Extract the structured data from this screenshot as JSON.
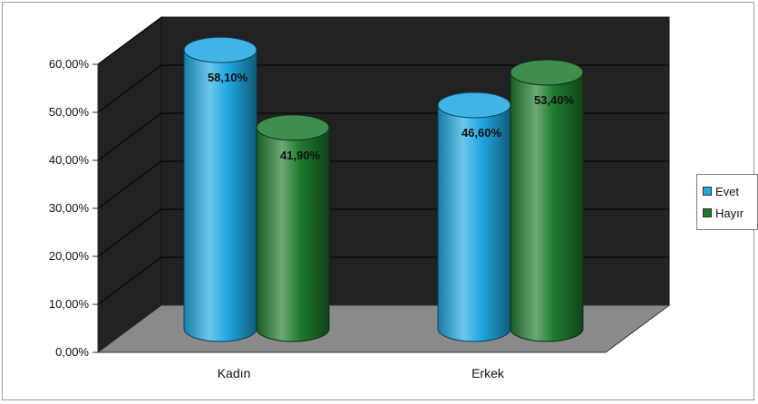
{
  "chart_data": {
    "type": "bar",
    "categories": [
      "Kadın",
      "Erkek"
    ],
    "series": [
      {
        "name": "Evet",
        "values": [
          58.1,
          46.6
        ],
        "labels": [
          "58,10%",
          "46,60%"
        ],
        "color": "#1fa7e0"
      },
      {
        "name": "Hayır",
        "values": [
          41.9,
          53.4
        ],
        "labels": [
          "41,90%",
          "53,40%"
        ],
        "color": "#1e7a2e"
      }
    ],
    "ylim": [
      0,
      60
    ],
    "yticks": [
      {
        "value": 0,
        "label": "0,00%"
      },
      {
        "value": 10,
        "label": "10,00%"
      },
      {
        "value": 20,
        "label": "20,00%"
      },
      {
        "value": 30,
        "label": "30,00%"
      },
      {
        "value": 40,
        "label": "40,00%"
      },
      {
        "value": 50,
        "label": "50,00%"
      },
      {
        "value": 60,
        "label": "60,00%"
      }
    ],
    "grid": true,
    "legend_position": "right",
    "wall_color": "#222222",
    "floor_color": "#8a8a8a"
  }
}
